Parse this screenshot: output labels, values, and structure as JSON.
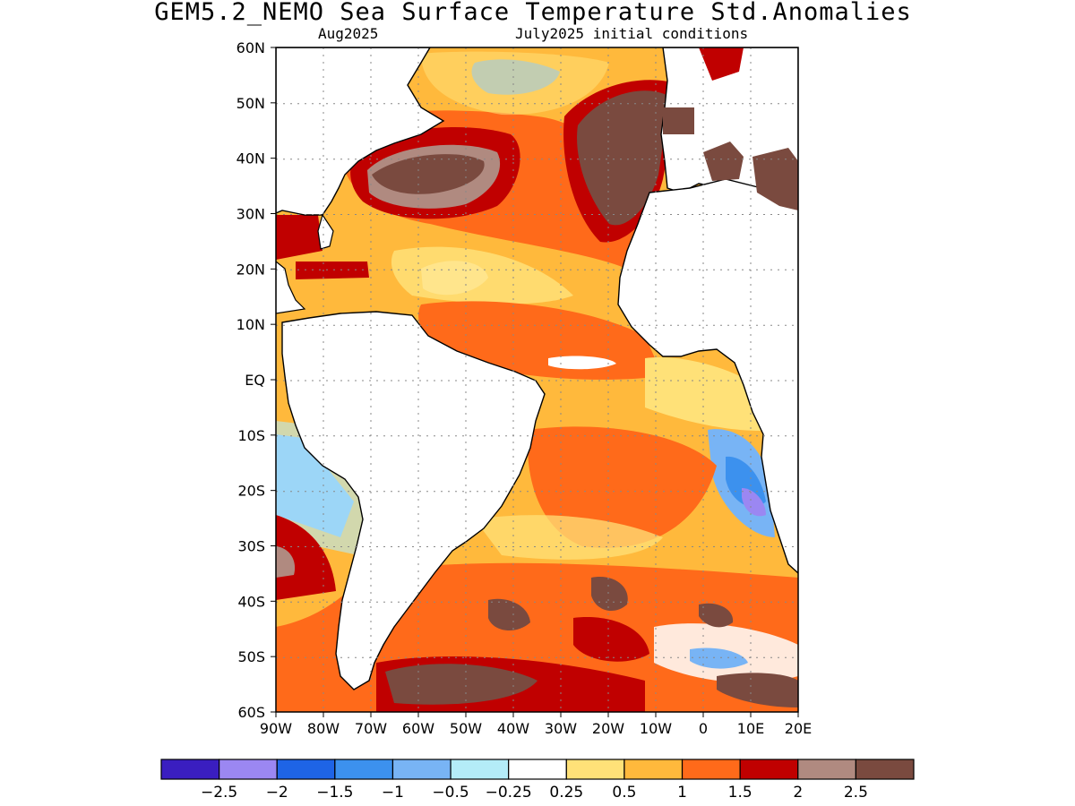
{
  "title": "GEM5.2_NEMO Sea Surface Temperature Std.Anomalies",
  "subtitle_left": "Aug2025",
  "subtitle_right": "July2025 initial conditions",
  "map": {
    "lat_labels": [
      "60N",
      "50N",
      "40N",
      "30N",
      "20N",
      "10N",
      "EQ",
      "10S",
      "20S",
      "30S",
      "40S",
      "50S",
      "60S"
    ],
    "lon_labels": [
      "90W",
      "80W",
      "70W",
      "60W",
      "50W",
      "40W",
      "30W",
      "20W",
      "10W",
      "0",
      "10E",
      "20E"
    ],
    "lat_range": [
      -60,
      60
    ],
    "lon_range": [
      -90,
      20
    ],
    "gridlines": "dotted"
  },
  "colorbar": {
    "colors": [
      "#3a1ec0",
      "#9b87f2",
      "#1e64e6",
      "#3c91ee",
      "#78b4f5",
      "#b4ecf8",
      "#ffffff",
      "#ffe178",
      "#ffb93c",
      "#ff6a1a",
      "#c00000",
      "#b08a80",
      "#7a4a3f"
    ],
    "labels": [
      "−2.5",
      "−2",
      "−1.5",
      "−1",
      "−0.5",
      "−0.25",
      "0.25",
      "0.5",
      "1",
      "1.5",
      "2",
      "2.5"
    ]
  },
  "palette": {
    "land": "#ffffff",
    "pos_lo": "#ffe178",
    "pos_1": "#ffb93c",
    "pos_15": "#ff6a1a",
    "pos_2": "#c00000",
    "pos_25": "#b08a80",
    "pos_hi": "#7a4a3f",
    "neg_25": "#b4ecf8",
    "neg_05": "#78b4f5",
    "neg_1": "#3c91ee",
    "neg_15": "#1e64e6",
    "neg_2": "#9b87f2"
  }
}
